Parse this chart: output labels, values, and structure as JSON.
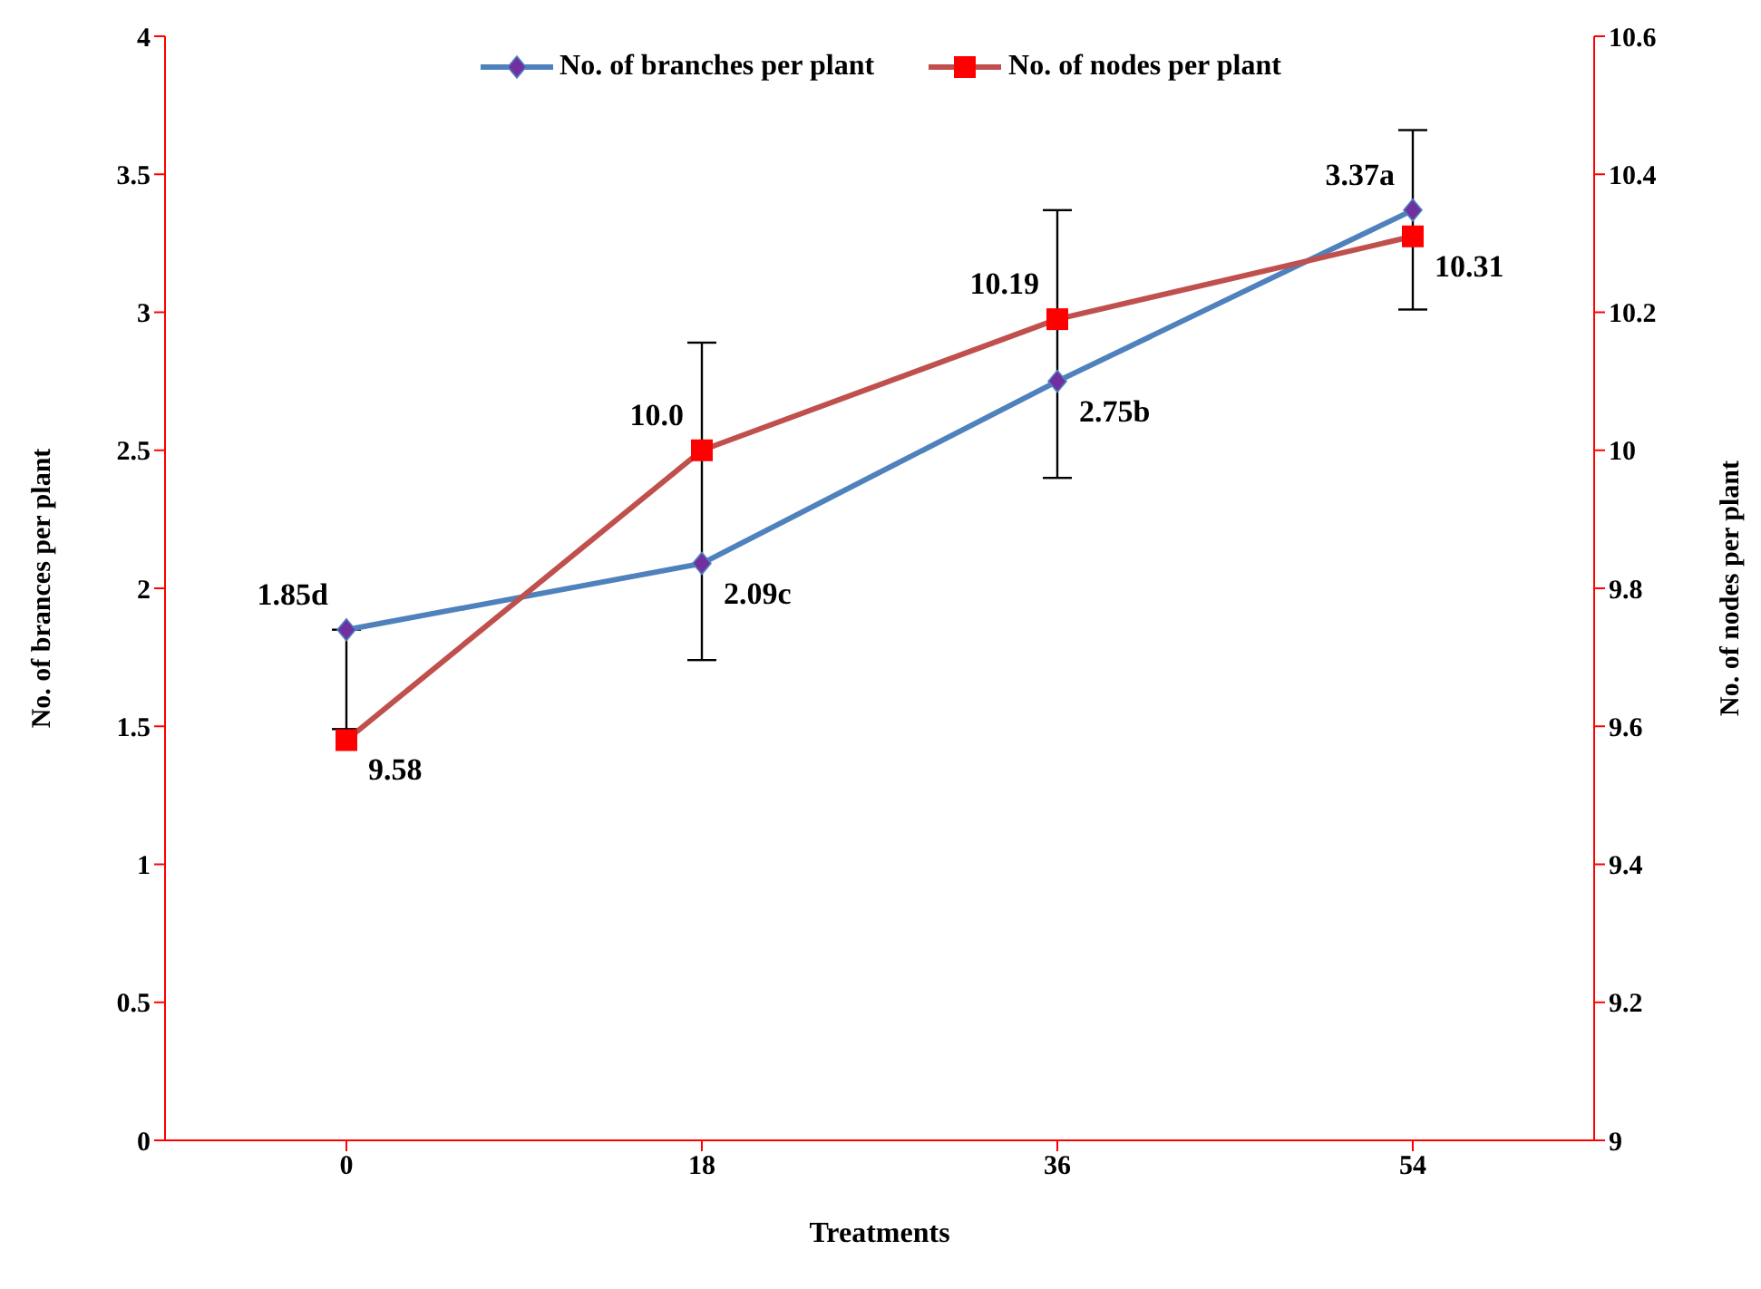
{
  "chart_data": {
    "type": "line",
    "xlabel": "Treatments",
    "ylabel": "No. of brances per plant",
    "y2label": "No. of nodes per plant",
    "categories": [
      "0",
      "18",
      "36",
      "54"
    ],
    "series": [
      {
        "name": "No. of branches per plant",
        "color": "#4f81bd",
        "colors": [
          "#7030a0",
          "#7030a0",
          "#7030a0",
          "#7030a0"
        ],
        "marker": "diamond",
        "values": [
          1.85,
          2.09,
          2.75,
          3.37
        ],
        "errors": [
          [
            1.49,
            1.85
          ],
          [
            1.74,
            2.89
          ],
          [
            2.4,
            3.37
          ],
          [
            3.01,
            3.66
          ]
        ],
        "value_labels": [
          "1.85d",
          "2.09c",
          "2.75b",
          "3.37a"
        ]
      },
      {
        "name": "No. of nodes per plant",
        "color": "#c0504d",
        "colors": [
          "#ff0000",
          "#ff0000",
          "#ff0000",
          "#ff0000"
        ],
        "marker": "square",
        "axis": "y2",
        "values": [
          9.58,
          10.0,
          10.19,
          10.31
        ],
        "value_labels": [
          "9.58",
          "10.0",
          "10.19",
          "10.31"
        ]
      }
    ],
    "ylim": [
      0,
      4
    ],
    "yticks": [
      0,
      0.5,
      1,
      1.5,
      2,
      2.5,
      3,
      3.5,
      4
    ],
    "y2lim": [
      9,
      10.6
    ],
    "y2ticks": [
      9,
      9.2,
      9.4,
      9.6,
      9.8,
      10,
      10.2,
      10.4,
      10.6
    ],
    "grid": false,
    "legend": "top"
  }
}
